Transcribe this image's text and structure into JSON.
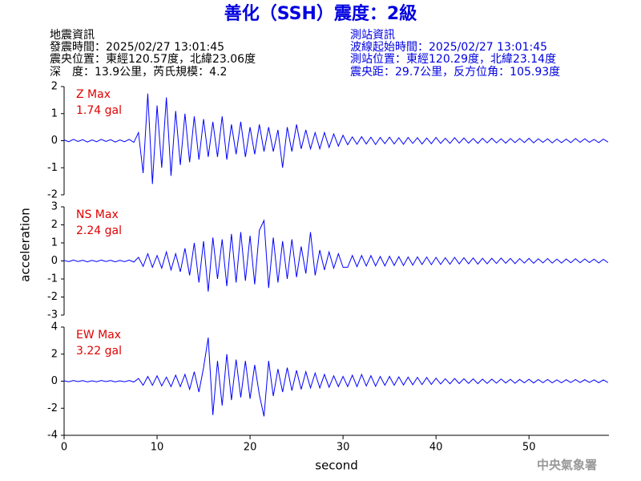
{
  "header": {
    "title": "善化（SSH）震度：2級",
    "left": [
      "地震資訊",
      "發震時間：2025/02/27 13:01:45",
      "震央位置：東經120.57度，北緯23.06度",
      "深　度：13.9公里，芮氏規模：4.2"
    ],
    "right": [
      "測站資訊",
      "波線起始時間：2025/02/27 13:01:45",
      "測站位置：東經120.29度，北緯23.14度",
      "震央距：29.7公里，反方位角：105.93度"
    ],
    "footer": "中央氣象署"
  },
  "chart_data": [
    {
      "type": "line",
      "annotations": [
        "Z Max",
        "1.74 gal"
      ],
      "annotation_color": "#e00000",
      "color": "#0000ff",
      "xlim": [
        0,
        58.6
      ],
      "ylim": [
        -2,
        2
      ],
      "yticks": [
        -2,
        -1,
        0,
        1,
        2
      ],
      "x": [
        0,
        0.5,
        1,
        1.5,
        2,
        2.5,
        3,
        3.5,
        4,
        4.5,
        5,
        5.5,
        6,
        6.5,
        7,
        7.5,
        8,
        8.5,
        9,
        9.5,
        10,
        10.5,
        11,
        11.5,
        12,
        12.5,
        13,
        13.5,
        14,
        14.5,
        15,
        15.5,
        16,
        16.5,
        17,
        17.5,
        18,
        18.5,
        19,
        19.5,
        20,
        20.5,
        21,
        21.5,
        22,
        22.5,
        23,
        23.5,
        24,
        24.5,
        25,
        25.5,
        26,
        26.5,
        27,
        27.5,
        28,
        28.5,
        29,
        29.5,
        30,
        30.5,
        31,
        31.5,
        32,
        32.5,
        33,
        33.5,
        34,
        34.5,
        35,
        35.5,
        36,
        36.5,
        37,
        37.5,
        38,
        38.5,
        39,
        39.5,
        40,
        40.5,
        41,
        41.5,
        42,
        42.5,
        43,
        43.5,
        44,
        44.5,
        45,
        45.5,
        46,
        46.5,
        47,
        47.5,
        48,
        48.5,
        49,
        49.5,
        50,
        50.5,
        51,
        51.5,
        52,
        52.5,
        53,
        53.5,
        54,
        54.5,
        55,
        55.5,
        56,
        56.5,
        57,
        57.5,
        58,
        58.5
      ],
      "values": [
        0.03,
        -0.04,
        0.05,
        -0.03,
        0.04,
        -0.05,
        0.03,
        -0.04,
        0.05,
        -0.03,
        0.04,
        -0.05,
        0.03,
        -0.04,
        0.05,
        -0.06,
        0.3,
        -1.2,
        1.74,
        -1.6,
        1.3,
        -1.0,
        1.6,
        -1.3,
        1.1,
        -0.9,
        1.0,
        -0.8,
        0.9,
        -0.7,
        0.8,
        -0.6,
        0.7,
        -0.6,
        0.9,
        -0.7,
        0.6,
        -0.5,
        0.7,
        -0.6,
        0.5,
        -0.5,
        0.6,
        -0.4,
        0.5,
        -0.4,
        0.4,
        -1.0,
        0.5,
        -0.4,
        0.6,
        -0.3,
        0.4,
        -0.3,
        0.3,
        -0.3,
        0.3,
        -0.25,
        0.25,
        -0.2,
        0.2,
        -0.15,
        0.14,
        -0.13,
        0.15,
        -0.12,
        0.13,
        -0.14,
        0.12,
        -0.11,
        0.13,
        -0.12,
        0.11,
        -0.13,
        0.12,
        -0.1,
        0.11,
        -0.12,
        0.1,
        -0.11,
        0.12,
        -0.1,
        0.09,
        -0.1,
        0.11,
        -0.09,
        0.1,
        -0.09,
        0.08,
        -0.1,
        0.09,
        -0.08,
        0.09,
        -0.08,
        0.07,
        -0.09,
        0.08,
        -0.07,
        0.08,
        -0.07,
        0.09,
        -0.08,
        0.07,
        -0.06,
        0.07,
        -0.08,
        0.06,
        -0.07,
        0.06,
        -0.07,
        0.08,
        -0.06,
        0.07,
        -0.06,
        0.05,
        -0.07,
        0.06,
        -0.05
      ]
    },
    {
      "type": "line",
      "annotations": [
        "NS Max",
        "2.24 gal"
      ],
      "annotation_color": "#e00000",
      "color": "#0000ff",
      "ylabel": "acceleration",
      "xlim": [
        0,
        58.6
      ],
      "ylim": [
        -3,
        3
      ],
      "yticks": [
        -3,
        -2,
        -1,
        0,
        1,
        2,
        3
      ],
      "x": [
        0,
        0.5,
        1,
        1.5,
        2,
        2.5,
        3,
        3.5,
        4,
        4.5,
        5,
        5.5,
        6,
        6.5,
        7,
        7.5,
        8,
        8.5,
        9,
        9.5,
        10,
        10.5,
        11,
        11.5,
        12,
        12.5,
        13,
        13.5,
        14,
        14.5,
        15,
        15.5,
        16,
        16.5,
        17,
        17.5,
        18,
        18.5,
        19,
        19.5,
        20,
        20.5,
        21,
        21.5,
        22,
        22.5,
        23,
        23.5,
        24,
        24.5,
        25,
        25.5,
        26,
        26.5,
        27,
        27.5,
        28,
        28.5,
        29,
        29.5,
        30,
        30.5,
        31,
        31.5,
        32,
        32.5,
        33,
        33.5,
        34,
        34.5,
        35,
        35.5,
        36,
        36.5,
        37,
        37.5,
        38,
        38.5,
        39,
        39.5,
        40,
        40.5,
        41,
        41.5,
        42,
        42.5,
        43,
        43.5,
        44,
        44.5,
        45,
        45.5,
        46,
        46.5,
        47,
        47.5,
        48,
        48.5,
        49,
        49.5,
        50,
        50.5,
        51,
        51.5,
        52,
        52.5,
        53,
        53.5,
        54,
        54.5,
        55,
        55.5,
        56,
        56.5,
        57,
        57.5,
        58,
        58.5
      ],
      "values": [
        0.03,
        -0.04,
        0.05,
        -0.03,
        0.04,
        -0.05,
        0.03,
        -0.04,
        0.05,
        -0.03,
        0.04,
        -0.05,
        0.03,
        -0.04,
        0.05,
        -0.06,
        0.2,
        -0.3,
        0.4,
        -0.35,
        0.3,
        -0.4,
        0.5,
        -0.5,
        0.4,
        -0.6,
        0.7,
        -0.8,
        1.0,
        -1.2,
        1.1,
        -1.7,
        1.3,
        -1.0,
        1.2,
        -1.4,
        1.5,
        -1.2,
        1.6,
        -1.1,
        1.4,
        -1.3,
        1.7,
        2.24,
        -1.5,
        1.3,
        -1.2,
        1.1,
        -1.0,
        1.2,
        -0.9,
        0.8,
        -0.7,
        1.6,
        -0.8,
        0.6,
        -0.5,
        0.5,
        -0.4,
        0.4,
        -0.35,
        -0.35,
        0.3,
        -0.32,
        0.3,
        -0.28,
        0.3,
        -0.27,
        0.25,
        -0.28,
        0.26,
        -0.25,
        0.24,
        -0.26,
        0.22,
        -0.24,
        0.23,
        -0.2,
        0.22,
        -0.21,
        0.2,
        -0.2,
        0.18,
        -0.19,
        0.2,
        -0.17,
        0.18,
        -0.16,
        0.17,
        -0.18,
        0.15,
        -0.16,
        0.15,
        -0.14,
        0.16,
        -0.13,
        0.14,
        -0.15,
        0.13,
        -0.12,
        0.14,
        -0.13,
        0.12,
        -0.11,
        0.13,
        -0.12,
        0.1,
        -0.12,
        0.11,
        -0.1,
        0.12,
        -0.1,
        0.11,
        -0.09,
        0.1,
        -0.11,
        0.09,
        -0.1
      ]
    },
    {
      "type": "line",
      "annotations": [
        "EW Max",
        "3.22 gal"
      ],
      "annotation_color": "#e00000",
      "color": "#0000ff",
      "xlabel": "second",
      "xlim": [
        0,
        58.6
      ],
      "xticks": [
        0,
        10,
        20,
        30,
        40,
        50
      ],
      "ylim": [
        -4,
        4
      ],
      "yticks": [
        -4,
        -2,
        0,
        2,
        4
      ],
      "x": [
        0,
        0.5,
        1,
        1.5,
        2,
        2.5,
        3,
        3.5,
        4,
        4.5,
        5,
        5.5,
        6,
        6.5,
        7,
        7.5,
        8,
        8.5,
        9,
        9.5,
        10,
        10.5,
        11,
        11.5,
        12,
        12.5,
        13,
        13.5,
        14,
        14.5,
        15,
        15.5,
        16,
        16.5,
        17,
        17.5,
        18,
        18.5,
        19,
        19.5,
        20,
        20.5,
        21,
        21.5,
        22,
        22.5,
        23,
        23.5,
        24,
        24.5,
        25,
        25.5,
        26,
        26.5,
        27,
        27.5,
        28,
        28.5,
        29,
        29.5,
        30,
        30.5,
        31,
        31.5,
        32,
        32.5,
        33,
        33.5,
        34,
        34.5,
        35,
        35.5,
        36,
        36.5,
        37,
        37.5,
        38,
        38.5,
        39,
        39.5,
        40,
        40.5,
        41,
        41.5,
        42,
        42.5,
        43,
        43.5,
        44,
        44.5,
        45,
        45.5,
        46,
        46.5,
        47,
        47.5,
        48,
        48.5,
        49,
        49.5,
        50,
        50.5,
        51,
        51.5,
        52,
        52.5,
        53,
        53.5,
        54,
        54.5,
        55,
        55.5,
        56,
        56.5,
        57,
        57.5,
        58,
        58.5
      ],
      "values": [
        0.03,
        -0.04,
        0.05,
        -0.03,
        0.04,
        -0.05,
        0.03,
        -0.04,
        0.05,
        -0.03,
        0.04,
        -0.05,
        0.03,
        -0.04,
        0.05,
        -0.06,
        0.2,
        -0.3,
        0.35,
        -0.3,
        0.4,
        -0.35,
        0.3,
        -0.4,
        0.45,
        -0.4,
        0.5,
        -0.6,
        0.7,
        -0.8,
        1.0,
        3.22,
        -2.5,
        1.5,
        -1.8,
        2.0,
        -1.4,
        1.6,
        -1.2,
        1.5,
        -1.3,
        1.2,
        -1.0,
        -2.6,
        1.5,
        -1.1,
        0.9,
        -0.8,
        1.0,
        -0.7,
        0.8,
        -0.6,
        0.7,
        -0.5,
        0.6,
        -0.5,
        0.5,
        -0.45,
        0.4,
        -0.4,
        0.35,
        -0.4,
        0.45,
        -0.4,
        0.5,
        -0.35,
        0.4,
        -0.38,
        0.35,
        -0.3,
        0.35,
        -0.3,
        0.32,
        -0.28,
        0.3,
        -0.26,
        0.28,
        -0.25,
        0.27,
        -0.24,
        0.22,
        -0.2,
        0.18,
        -0.19,
        0.2,
        -0.17,
        0.18,
        -0.16,
        0.17,
        -0.18,
        0.15,
        -0.16,
        0.15,
        -0.14,
        0.16,
        -0.13,
        0.14,
        -0.15,
        0.13,
        -0.12,
        0.14,
        -0.13,
        0.12,
        -0.11,
        0.13,
        -0.12,
        0.1,
        -0.12,
        0.11,
        -0.1,
        0.12,
        -0.1,
        0.11,
        -0.09,
        0.1,
        -0.11,
        0.09,
        -0.1
      ]
    }
  ]
}
